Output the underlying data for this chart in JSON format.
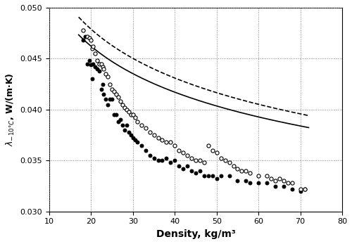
{
  "title": "",
  "xlabel": "Density, kg/m³",
  "ylabel": "λ₋₁₀°С, W/(m·K)",
  "xlim": [
    10,
    80
  ],
  "ylim": [
    0.03,
    0.05
  ],
  "xticks": [
    10,
    20,
    30,
    40,
    50,
    60,
    70,
    80
  ],
  "yticks": [
    0.03,
    0.035,
    0.04,
    0.045,
    0.05
  ],
  "background_color": "#ffffff",
  "filled_dots": [
    [
      18.0,
      0.0468
    ],
    [
      18.5,
      0.0472
    ],
    [
      19.0,
      0.0445
    ],
    [
      19.5,
      0.0448
    ],
    [
      20.0,
      0.0444
    ],
    [
      20.2,
      0.043
    ],
    [
      20.5,
      0.0445
    ],
    [
      21.0,
      0.0442
    ],
    [
      21.5,
      0.044
    ],
    [
      22.0,
      0.0438
    ],
    [
      22.5,
      0.042
    ],
    [
      22.8,
      0.0425
    ],
    [
      23.0,
      0.0415
    ],
    [
      23.5,
      0.041
    ],
    [
      24.0,
      0.0405
    ],
    [
      24.5,
      0.041
    ],
    [
      25.0,
      0.041
    ],
    [
      25.5,
      0.0395
    ],
    [
      26.0,
      0.0395
    ],
    [
      26.5,
      0.0388
    ],
    [
      27.0,
      0.039
    ],
    [
      27.5,
      0.0385
    ],
    [
      28.0,
      0.038
    ],
    [
      28.5,
      0.0385
    ],
    [
      29.0,
      0.0378
    ],
    [
      29.5,
      0.0375
    ],
    [
      30.0,
      0.0372
    ],
    [
      30.5,
      0.037
    ],
    [
      31.0,
      0.0368
    ],
    [
      32.0,
      0.0365
    ],
    [
      33.0,
      0.036
    ],
    [
      34.0,
      0.0355
    ],
    [
      35.0,
      0.0352
    ],
    [
      36.0,
      0.035
    ],
    [
      37.0,
      0.035
    ],
    [
      38.0,
      0.0352
    ],
    [
      39.0,
      0.0348
    ],
    [
      40.0,
      0.035
    ],
    [
      41.0,
      0.0345
    ],
    [
      42.0,
      0.0342
    ],
    [
      43.0,
      0.0345
    ],
    [
      44.0,
      0.034
    ],
    [
      45.0,
      0.0338
    ],
    [
      46.0,
      0.034
    ],
    [
      47.0,
      0.0335
    ],
    [
      48.0,
      0.0335
    ],
    [
      49.0,
      0.0335
    ],
    [
      50.0,
      0.0332
    ],
    [
      51.0,
      0.0335
    ],
    [
      53.0,
      0.0335
    ],
    [
      55.0,
      0.033
    ],
    [
      57.0,
      0.033
    ],
    [
      58.0,
      0.0328
    ],
    [
      60.0,
      0.0328
    ],
    [
      62.0,
      0.0328
    ],
    [
      64.0,
      0.0325
    ],
    [
      66.0,
      0.0325
    ],
    [
      68.0,
      0.0322
    ],
    [
      70.0,
      0.032
    ],
    [
      71.0,
      0.0322
    ]
  ],
  "open_dots": [
    [
      18.0,
      0.0478
    ],
    [
      19.0,
      0.0472
    ],
    [
      19.5,
      0.047
    ],
    [
      20.0,
      0.0468
    ],
    [
      20.3,
      0.046
    ],
    [
      20.5,
      0.0462
    ],
    [
      21.0,
      0.0455
    ],
    [
      21.5,
      0.0448
    ],
    [
      22.0,
      0.0445
    ],
    [
      22.5,
      0.0445
    ],
    [
      22.8,
      0.0442
    ],
    [
      23.0,
      0.044
    ],
    [
      23.5,
      0.0435
    ],
    [
      24.0,
      0.0432
    ],
    [
      24.5,
      0.0425
    ],
    [
      25.0,
      0.042
    ],
    [
      25.5,
      0.0418
    ],
    [
      26.0,
      0.0415
    ],
    [
      26.5,
      0.0412
    ],
    [
      27.0,
      0.0408
    ],
    [
      27.5,
      0.0405
    ],
    [
      28.0,
      0.0402
    ],
    [
      28.5,
      0.04
    ],
    [
      29.0,
      0.0398
    ],
    [
      29.5,
      0.0395
    ],
    [
      30.0,
      0.0395
    ],
    [
      30.5,
      0.0392
    ],
    [
      31.0,
      0.0388
    ],
    [
      32.0,
      0.0385
    ],
    [
      33.0,
      0.0382
    ],
    [
      34.0,
      0.0378
    ],
    [
      35.0,
      0.0375
    ],
    [
      36.0,
      0.0372
    ],
    [
      37.0,
      0.037
    ],
    [
      38.0,
      0.0368
    ],
    [
      39.0,
      0.0368
    ],
    [
      40.0,
      0.0365
    ],
    [
      41.0,
      0.036
    ],
    [
      42.0,
      0.0358
    ],
    [
      43.0,
      0.0355
    ],
    [
      44.0,
      0.0352
    ],
    [
      45.0,
      0.035
    ],
    [
      46.0,
      0.035
    ],
    [
      47.0,
      0.0348
    ],
    [
      48.0,
      0.0365
    ],
    [
      49.0,
      0.036
    ],
    [
      50.0,
      0.0358
    ],
    [
      51.0,
      0.0352
    ],
    [
      52.0,
      0.035
    ],
    [
      53.0,
      0.0348
    ],
    [
      54.0,
      0.0345
    ],
    [
      55.0,
      0.0342
    ],
    [
      56.0,
      0.034
    ],
    [
      57.0,
      0.034
    ],
    [
      58.0,
      0.0338
    ],
    [
      60.0,
      0.0335
    ],
    [
      62.0,
      0.0335
    ],
    [
      63.0,
      0.0332
    ],
    [
      64.0,
      0.033
    ],
    [
      65.0,
      0.0332
    ],
    [
      66.0,
      0.033
    ],
    [
      67.0,
      0.0328
    ],
    [
      68.0,
      0.0328
    ],
    [
      70.0,
      0.0322
    ],
    [
      71.0,
      0.0322
    ]
  ],
  "curve_solid_params": [
    0.072,
    -0.148
  ],
  "curve_dashed_params": [
    0.0755,
    -0.152
  ]
}
